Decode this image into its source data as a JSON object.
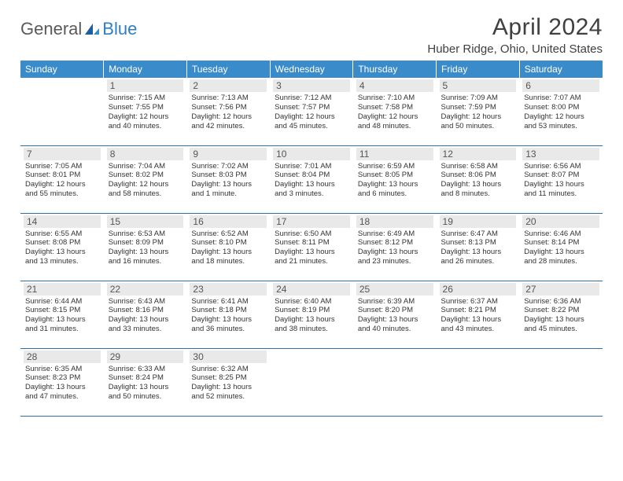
{
  "brand": {
    "part1": "General",
    "part2": "Blue"
  },
  "title": "April 2024",
  "location": "Huber Ridge, Ohio, United States",
  "styling": {
    "header_bg": "#3a8bc9",
    "header_text": "#ffffff",
    "daynum_bg": "#e9e9e9",
    "daynum_text": "#555555",
    "border_color": "#2f6fa8",
    "title_color": "#404040",
    "body_text": "#333333",
    "logo_gray": "#5a5a5a",
    "logo_blue": "#2f7fc2",
    "page_bg": "#ffffff",
    "title_fontsize": 30,
    "location_fontsize": 15,
    "dayheader_fontsize": 12,
    "detail_fontsize": 9.5
  },
  "weekdays": [
    "Sunday",
    "Monday",
    "Tuesday",
    "Wednesday",
    "Thursday",
    "Friday",
    "Saturday"
  ],
  "weeks": [
    [
      null,
      {
        "n": "1",
        "sr": "Sunrise: 7:15 AM",
        "ss": "Sunset: 7:55 PM",
        "dl": "Daylight: 12 hours and 40 minutes."
      },
      {
        "n": "2",
        "sr": "Sunrise: 7:13 AM",
        "ss": "Sunset: 7:56 PM",
        "dl": "Daylight: 12 hours and 42 minutes."
      },
      {
        "n": "3",
        "sr": "Sunrise: 7:12 AM",
        "ss": "Sunset: 7:57 PM",
        "dl": "Daylight: 12 hours and 45 minutes."
      },
      {
        "n": "4",
        "sr": "Sunrise: 7:10 AM",
        "ss": "Sunset: 7:58 PM",
        "dl": "Daylight: 12 hours and 48 minutes."
      },
      {
        "n": "5",
        "sr": "Sunrise: 7:09 AM",
        "ss": "Sunset: 7:59 PM",
        "dl": "Daylight: 12 hours and 50 minutes."
      },
      {
        "n": "6",
        "sr": "Sunrise: 7:07 AM",
        "ss": "Sunset: 8:00 PM",
        "dl": "Daylight: 12 hours and 53 minutes."
      }
    ],
    [
      {
        "n": "7",
        "sr": "Sunrise: 7:05 AM",
        "ss": "Sunset: 8:01 PM",
        "dl": "Daylight: 12 hours and 55 minutes."
      },
      {
        "n": "8",
        "sr": "Sunrise: 7:04 AM",
        "ss": "Sunset: 8:02 PM",
        "dl": "Daylight: 12 hours and 58 minutes."
      },
      {
        "n": "9",
        "sr": "Sunrise: 7:02 AM",
        "ss": "Sunset: 8:03 PM",
        "dl": "Daylight: 13 hours and 1 minute."
      },
      {
        "n": "10",
        "sr": "Sunrise: 7:01 AM",
        "ss": "Sunset: 8:04 PM",
        "dl": "Daylight: 13 hours and 3 minutes."
      },
      {
        "n": "11",
        "sr": "Sunrise: 6:59 AM",
        "ss": "Sunset: 8:05 PM",
        "dl": "Daylight: 13 hours and 6 minutes."
      },
      {
        "n": "12",
        "sr": "Sunrise: 6:58 AM",
        "ss": "Sunset: 8:06 PM",
        "dl": "Daylight: 13 hours and 8 minutes."
      },
      {
        "n": "13",
        "sr": "Sunrise: 6:56 AM",
        "ss": "Sunset: 8:07 PM",
        "dl": "Daylight: 13 hours and 11 minutes."
      }
    ],
    [
      {
        "n": "14",
        "sr": "Sunrise: 6:55 AM",
        "ss": "Sunset: 8:08 PM",
        "dl": "Daylight: 13 hours and 13 minutes."
      },
      {
        "n": "15",
        "sr": "Sunrise: 6:53 AM",
        "ss": "Sunset: 8:09 PM",
        "dl": "Daylight: 13 hours and 16 minutes."
      },
      {
        "n": "16",
        "sr": "Sunrise: 6:52 AM",
        "ss": "Sunset: 8:10 PM",
        "dl": "Daylight: 13 hours and 18 minutes."
      },
      {
        "n": "17",
        "sr": "Sunrise: 6:50 AM",
        "ss": "Sunset: 8:11 PM",
        "dl": "Daylight: 13 hours and 21 minutes."
      },
      {
        "n": "18",
        "sr": "Sunrise: 6:49 AM",
        "ss": "Sunset: 8:12 PM",
        "dl": "Daylight: 13 hours and 23 minutes."
      },
      {
        "n": "19",
        "sr": "Sunrise: 6:47 AM",
        "ss": "Sunset: 8:13 PM",
        "dl": "Daylight: 13 hours and 26 minutes."
      },
      {
        "n": "20",
        "sr": "Sunrise: 6:46 AM",
        "ss": "Sunset: 8:14 PM",
        "dl": "Daylight: 13 hours and 28 minutes."
      }
    ],
    [
      {
        "n": "21",
        "sr": "Sunrise: 6:44 AM",
        "ss": "Sunset: 8:15 PM",
        "dl": "Daylight: 13 hours and 31 minutes."
      },
      {
        "n": "22",
        "sr": "Sunrise: 6:43 AM",
        "ss": "Sunset: 8:16 PM",
        "dl": "Daylight: 13 hours and 33 minutes."
      },
      {
        "n": "23",
        "sr": "Sunrise: 6:41 AM",
        "ss": "Sunset: 8:18 PM",
        "dl": "Daylight: 13 hours and 36 minutes."
      },
      {
        "n": "24",
        "sr": "Sunrise: 6:40 AM",
        "ss": "Sunset: 8:19 PM",
        "dl": "Daylight: 13 hours and 38 minutes."
      },
      {
        "n": "25",
        "sr": "Sunrise: 6:39 AM",
        "ss": "Sunset: 8:20 PM",
        "dl": "Daylight: 13 hours and 40 minutes."
      },
      {
        "n": "26",
        "sr": "Sunrise: 6:37 AM",
        "ss": "Sunset: 8:21 PM",
        "dl": "Daylight: 13 hours and 43 minutes."
      },
      {
        "n": "27",
        "sr": "Sunrise: 6:36 AM",
        "ss": "Sunset: 8:22 PM",
        "dl": "Daylight: 13 hours and 45 minutes."
      }
    ],
    [
      {
        "n": "28",
        "sr": "Sunrise: 6:35 AM",
        "ss": "Sunset: 8:23 PM",
        "dl": "Daylight: 13 hours and 47 minutes."
      },
      {
        "n": "29",
        "sr": "Sunrise: 6:33 AM",
        "ss": "Sunset: 8:24 PM",
        "dl": "Daylight: 13 hours and 50 minutes."
      },
      {
        "n": "30",
        "sr": "Sunrise: 6:32 AM",
        "ss": "Sunset: 8:25 PM",
        "dl": "Daylight: 13 hours and 52 minutes."
      },
      null,
      null,
      null,
      null
    ]
  ]
}
